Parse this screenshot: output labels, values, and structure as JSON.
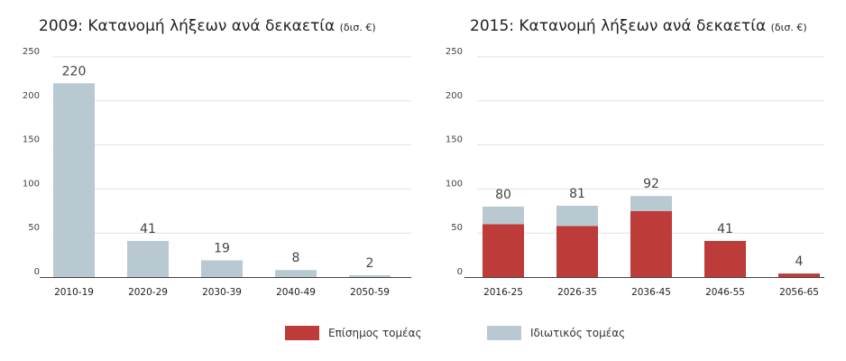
{
  "colors": {
    "official": "#bd3b39",
    "private": "#b8c9d1",
    "grid": "#e2e2e2",
    "axis": "#444444",
    "label": "#444444"
  },
  "legend": {
    "official": "Επίσημος τομέας",
    "private": "Ιδιωτικός τομέας"
  },
  "chart_data": [
    {
      "type": "bar",
      "title": "2009: Κατανομή λήξεων ανά δεκαετία",
      "unit": "(δισ. €)",
      "categories": [
        "2010-19",
        "2020-29",
        "2030-39",
        "2040-49",
        "2050-59"
      ],
      "series": [
        {
          "name": "Ιδιωτικός τομέας",
          "values": [
            220,
            41,
            19,
            8,
            2
          ]
        }
      ],
      "totals": [
        220,
        41,
        19,
        8,
        2
      ],
      "y_ticks": [
        0,
        50,
        100,
        150,
        200,
        250
      ],
      "ylim": [
        0,
        250
      ],
      "grid": true
    },
    {
      "type": "bar",
      "stacked": true,
      "title": "2015: Κατανομή λήξεων ανά δεκαετία",
      "unit": "(δισ. €)",
      "categories": [
        "2016-25",
        "2026-35",
        "2036-45",
        "2046-55",
        "2056-65"
      ],
      "series": [
        {
          "name": "Επίσημος τομέας",
          "values": [
            60,
            58,
            75,
            41,
            4
          ]
        },
        {
          "name": "Ιδιωτικός τομέας",
          "values": [
            20,
            23,
            17,
            0,
            0
          ]
        }
      ],
      "totals": [
        80,
        81,
        92,
        41,
        4
      ],
      "y_ticks": [
        0,
        50,
        100,
        150,
        200,
        250
      ],
      "ylim": [
        0,
        250
      ],
      "grid": true
    }
  ]
}
